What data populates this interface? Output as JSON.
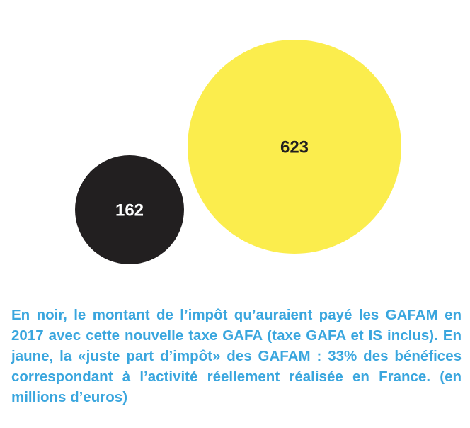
{
  "chart_data": {
    "type": "bubble",
    "series": [
      {
        "value": 162,
        "label": "162",
        "color": "#221f20",
        "label_color": "#ffffff"
      },
      {
        "value": 623,
        "label": "623",
        "color": "#fbed4d",
        "label_color": "#221f20"
      }
    ]
  },
  "caption": {
    "text": "En noir, le montant de l’impôt qu’auraient payé les GAFAM en 2017 avec cette nouvelle taxe GAFA (taxe GAFA et IS inclus). En jaune, la «juste part d’impôt» des GAFAM : 33% des bénéfices correspondant à l’activité réellement réalisée en France. (en millions d’euros)"
  }
}
